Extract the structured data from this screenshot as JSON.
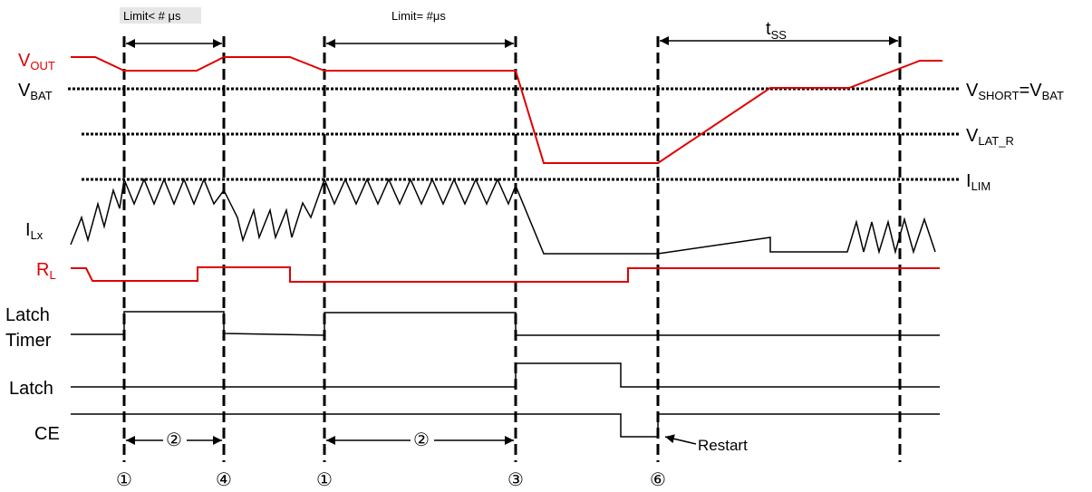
{
  "colors": {
    "signal_red": "#e00000",
    "signal_black": "#000000",
    "highlight_box": "#e6e6e6"
  },
  "labels": {
    "vout_main": "V",
    "vout_sub": "OUT",
    "vbat_main": "V",
    "vbat_sub": "BAT",
    "ilx_main": "I",
    "ilx_sub": "Lx",
    "rl_main": "R",
    "rl_sub": "L",
    "latch_timer_line1": "Latch",
    "latch_timer_line2": "Timer",
    "latch": "Latch",
    "ce": "CE",
    "vshort_main1": "V",
    "vshort_sub1": "SHORT",
    "vshort_eq": "=V",
    "vshort_sub2": "BAT",
    "vlat_main": "V",
    "vlat_sub": "LAT_R",
    "ilim_main": "I",
    "ilim_sub": "LIM",
    "tss_main": "t",
    "tss_sub": "SS"
  },
  "annotations": {
    "limit_lt": "Limit< # μs",
    "limit_eq": "Limit= #μs",
    "step2a": "②",
    "step2b": "②",
    "restart": "Restart"
  },
  "markers": [
    "①",
    "④",
    "①",
    "③",
    "⑥"
  ]
}
